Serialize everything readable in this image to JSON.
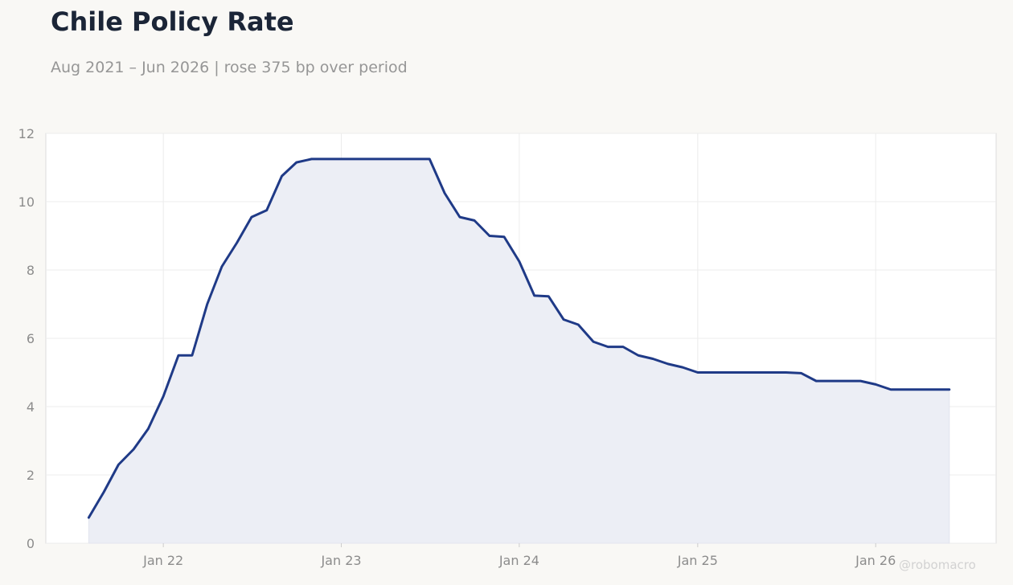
{
  "header": {
    "title": "Chile Policy Rate",
    "subtitle": "Aug 2021 – Jun 2026 | rose 375 bp over period"
  },
  "watermark": "@robomacro",
  "colors": {
    "background": "#f9f8f5",
    "plot_background": "#ffffff",
    "line": "#1f3a87",
    "area_fill": "#eceef5",
    "grid": "#ececec",
    "title": "#1b2537",
    "muted_text": "#969696"
  },
  "chart_data": {
    "type": "area",
    "title": "Chile Policy Rate",
    "subtitle": "Aug 2021 – Jun 2026 | rose 375 bp over period",
    "xlabel": "",
    "ylabel": "",
    "ylim": [
      0,
      12
    ],
    "xlim": [
      "2021-05-05",
      "2026-09-05"
    ],
    "yticks": [
      0,
      2,
      4,
      6,
      8,
      10,
      12
    ],
    "xticks": [
      {
        "date": "2022-01-01",
        "label": "Jan 22"
      },
      {
        "date": "2023-01-01",
        "label": "Jan 23"
      },
      {
        "date": "2024-01-01",
        "label": "Jan 24"
      },
      {
        "date": "2025-01-01",
        "label": "Jan 25"
      },
      {
        "date": "2026-01-01",
        "label": "Jan 26"
      }
    ],
    "grid": true,
    "x": [
      "2021-08-01",
      "2021-09-01",
      "2021-10-01",
      "2021-11-01",
      "2021-12-01",
      "2022-01-01",
      "2022-02-01",
      "2022-03-01",
      "2022-04-01",
      "2022-05-01",
      "2022-06-01",
      "2022-07-01",
      "2022-08-01",
      "2022-09-01",
      "2022-10-01",
      "2022-11-01",
      "2022-12-01",
      "2023-01-01",
      "2023-02-01",
      "2023-03-01",
      "2023-04-01",
      "2023-05-01",
      "2023-06-01",
      "2023-07-01",
      "2023-08-01",
      "2023-09-01",
      "2023-10-01",
      "2023-11-01",
      "2023-12-01",
      "2024-01-01",
      "2024-02-01",
      "2024-03-01",
      "2024-04-01",
      "2024-05-01",
      "2024-06-01",
      "2024-07-01",
      "2024-08-01",
      "2024-09-01",
      "2024-10-01",
      "2024-11-01",
      "2024-12-01",
      "2025-01-01",
      "2025-02-01",
      "2025-03-01",
      "2025-04-01",
      "2025-05-01",
      "2025-06-01",
      "2025-07-01",
      "2025-08-01",
      "2025-09-01",
      "2025-10-01",
      "2025-11-01",
      "2025-12-01",
      "2026-01-01",
      "2026-02-01",
      "2026-03-01",
      "2026-04-01",
      "2026-05-01",
      "2026-06-01"
    ],
    "series": [
      {
        "values": [
          0.75,
          1.5,
          2.3,
          2.75,
          3.35,
          4.3,
          5.5,
          5.5,
          7.0,
          8.1,
          8.8,
          9.55,
          9.75,
          10.75,
          11.15,
          11.25,
          11.25,
          11.25,
          11.25,
          11.25,
          11.25,
          11.25,
          11.25,
          11.25,
          10.25,
          9.55,
          9.45,
          9.0,
          8.97,
          8.25,
          7.25,
          7.23,
          6.55,
          6.4,
          5.9,
          5.75,
          5.75,
          5.5,
          5.4,
          5.25,
          5.15,
          5.0,
          5.0,
          5.0,
          5.0,
          5.0,
          5.0,
          5.0,
          4.98,
          4.75,
          4.75,
          4.75,
          4.75,
          4.65,
          4.5,
          4.5,
          4.5,
          4.5,
          4.5
        ]
      }
    ]
  }
}
